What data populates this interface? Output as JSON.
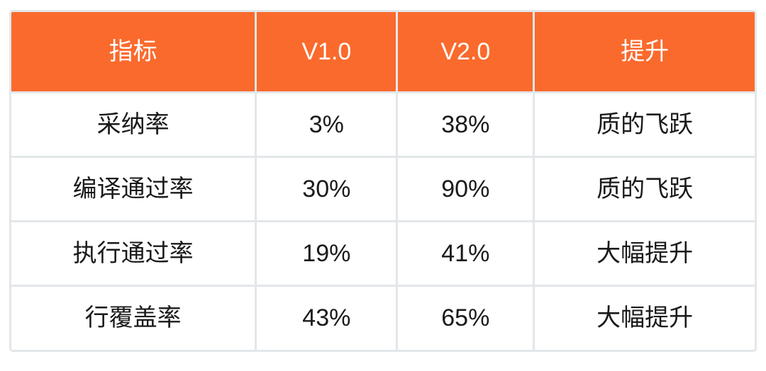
{
  "table": {
    "headers": [
      "指标",
      "V1.0",
      "V2.0",
      "提升"
    ],
    "rows": [
      [
        "采纳率",
        "3%",
        "38%",
        "质的飞跃"
      ],
      [
        "编译通过率",
        "30%",
        "90%",
        "质的飞跃"
      ],
      [
        "执行通过率",
        "19%",
        "41%",
        "大幅提升"
      ],
      [
        "行覆盖率",
        "43%",
        "65%",
        "大幅提升"
      ]
    ]
  },
  "colors": {
    "header_bg": "#FA6A2D",
    "header_text": "#FFFFFF",
    "body_text": "#1A1A1A",
    "border": "#E3E7EA",
    "body_bg": "#FFFFFF"
  },
  "chart_data": {
    "type": "table",
    "title": "",
    "columns": [
      "指标",
      "V1.0",
      "V2.0",
      "提升"
    ],
    "rows": [
      {
        "指标": "采纳率",
        "V1.0": "3%",
        "V2.0": "38%",
        "提升": "质的飞跃"
      },
      {
        "指标": "编译通过率",
        "V1.0": "30%",
        "V2.0": "90%",
        "提升": "质的飞跃"
      },
      {
        "指标": "执行通过率",
        "V1.0": "19%",
        "V2.0": "41%",
        "提升": "大幅提升"
      },
      {
        "指标": "行覆盖率",
        "V1.0": "43%",
        "V2.0": "65%",
        "提升": "大幅提升"
      }
    ]
  }
}
